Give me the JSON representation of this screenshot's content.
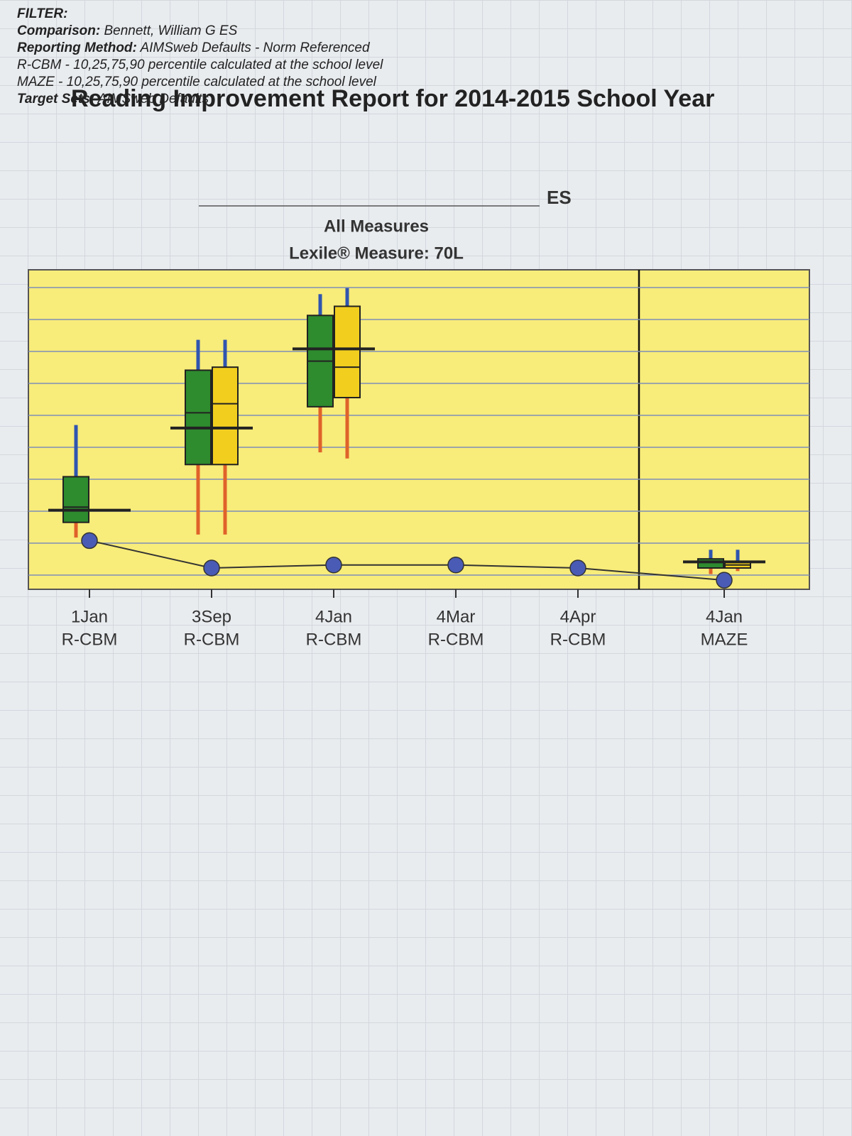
{
  "header": {
    "filter": "FILTER:",
    "lines": [
      {
        "label": "Comparison:",
        "text": "Bennett, William G ES"
      },
      {
        "label": "Reporting Method:",
        "text": "AIMSweb Defaults - Norm Referenced"
      },
      {
        "text": "R-CBM - 10,25,75,90 percentile calculated at the school level"
      },
      {
        "text": "MAZE - 10,25,75,90 percentile calculated at the school level"
      },
      {
        "label": "Target Sets:",
        "text": "AIMSweb Defaults"
      }
    ]
  },
  "chart_data": {
    "type": "box",
    "title": "Reading Improvement Report for 2014-2015 School Year",
    "school": "ES",
    "subtitle": "All Measures",
    "measure": "Lexile® Measure: 70L",
    "categories": [
      "1Jan",
      "3Sep",
      "4Jan",
      "4Mar",
      "4Apr",
      "4Jan"
    ],
    "measures": [
      "R-CBM",
      "R-CBM",
      "R-CBM",
      "R-CBM",
      "R-CBM",
      "MAZE"
    ],
    "ylim": [
      -5,
      100
    ],
    "series": [
      {
        "color": "#2e8b2e",
        "values": [
          [
            12,
            17,
            22,
            32,
            49
          ],
          [
            13,
            36,
            53,
            67,
            77
          ],
          [
            40,
            55,
            70,
            85,
            92
          ],
          null,
          null,
          [
            0,
            2,
            4,
            5,
            8
          ]
        ]
      },
      {
        "color": "#f2cf1f",
        "values": [
          null,
          [
            13,
            36,
            56,
            68,
            77
          ],
          [
            38,
            58,
            68,
            88,
            94
          ],
          null,
          null,
          [
            1,
            2,
            3,
            4,
            8
          ]
        ]
      }
    ],
    "targets": [
      21,
      48,
      74,
      null,
      null,
      4
    ],
    "student": {
      "color": "#4a5bb5",
      "values": [
        11,
        2,
        3,
        3,
        2,
        -2
      ]
    },
    "upper_whisker_color": "#2f55b0",
    "lower_whisker_color": "#e0622a",
    "plot_color": "#f8ec7a"
  }
}
